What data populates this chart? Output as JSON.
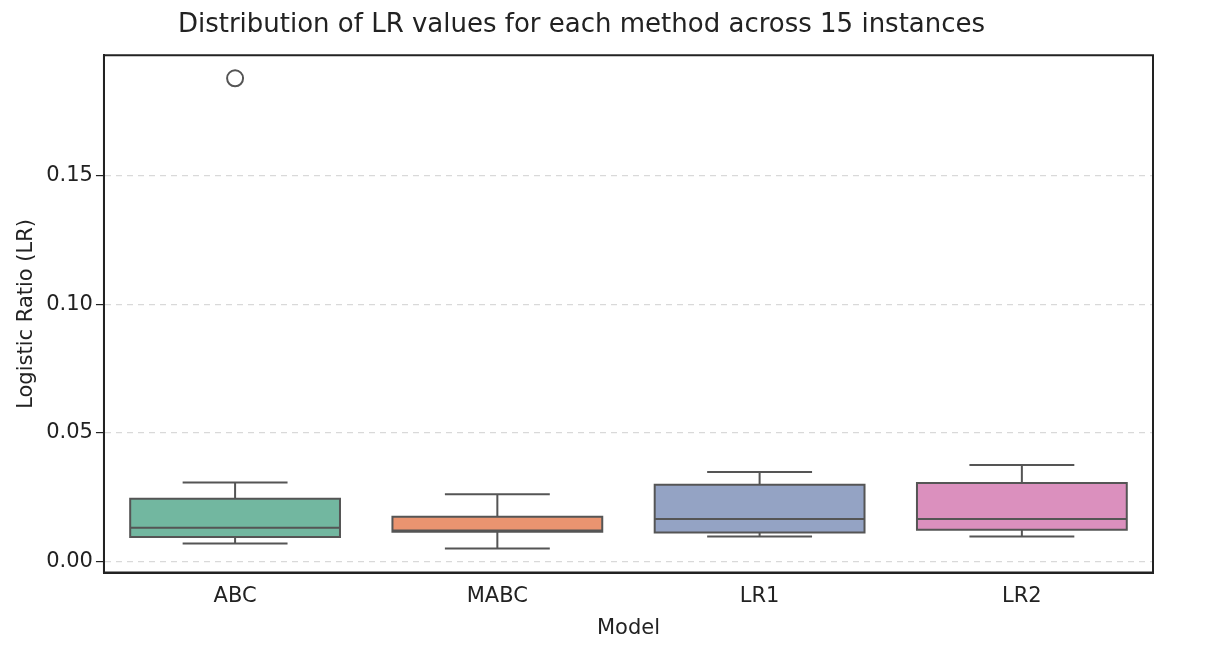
{
  "chart_data": {
    "type": "box",
    "title": "Distribution of LR values for each method across 15 instances",
    "xlabel": "Model",
    "ylabel": "Logistic Ratio (LR)",
    "categories": [
      "ABC",
      "MABC",
      "LR1",
      "LR2"
    ],
    "colors": [
      "#72b7a0",
      "#ea9470",
      "#94a3c4",
      "#db90be"
    ],
    "boxes": [
      {
        "low": 0.0069,
        "q1": 0.0095,
        "median": 0.0131,
        "q3": 0.0243,
        "high": 0.0307,
        "outliers": [
          0.188
        ]
      },
      {
        "low": 0.005,
        "q1": 0.0115,
        "median": 0.012,
        "q3": 0.0173,
        "high": 0.0261
      },
      {
        "low": 0.0097,
        "q1": 0.0112,
        "median": 0.0165,
        "q3": 0.0298,
        "high": 0.0348
      },
      {
        "low": 0.0097,
        "q1": 0.0123,
        "median": 0.0165,
        "q3": 0.0305,
        "high": 0.0375
      }
    ],
    "ylim": [
      -0.0044,
      0.197
    ],
    "yticks": [
      {
        "value": 0,
        "label": "0.00"
      },
      {
        "value": 0.05,
        "label": "0.05"
      },
      {
        "value": 0.1,
        "label": "0.10"
      },
      {
        "value": 0.15,
        "label": "0.15"
      }
    ],
    "grid": "y",
    "legend": false
  }
}
